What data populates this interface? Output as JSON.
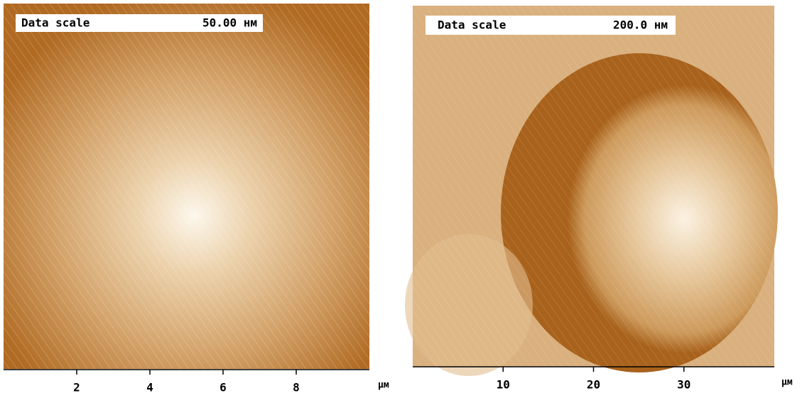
{
  "panels": [
    {
      "data_scale_label": "Data scale",
      "data_scale_value": "50.00 нм",
      "xlim": [
        0,
        10
      ],
      "xticks": [
        2,
        4,
        6,
        8
      ],
      "x_unit": "μм"
    },
    {
      "data_scale_label": "Data scale",
      "data_scale_value": "200.0 нм",
      "xlim": [
        0,
        40
      ],
      "xticks": [
        10,
        20,
        30
      ],
      "x_unit": "μм"
    }
  ]
}
